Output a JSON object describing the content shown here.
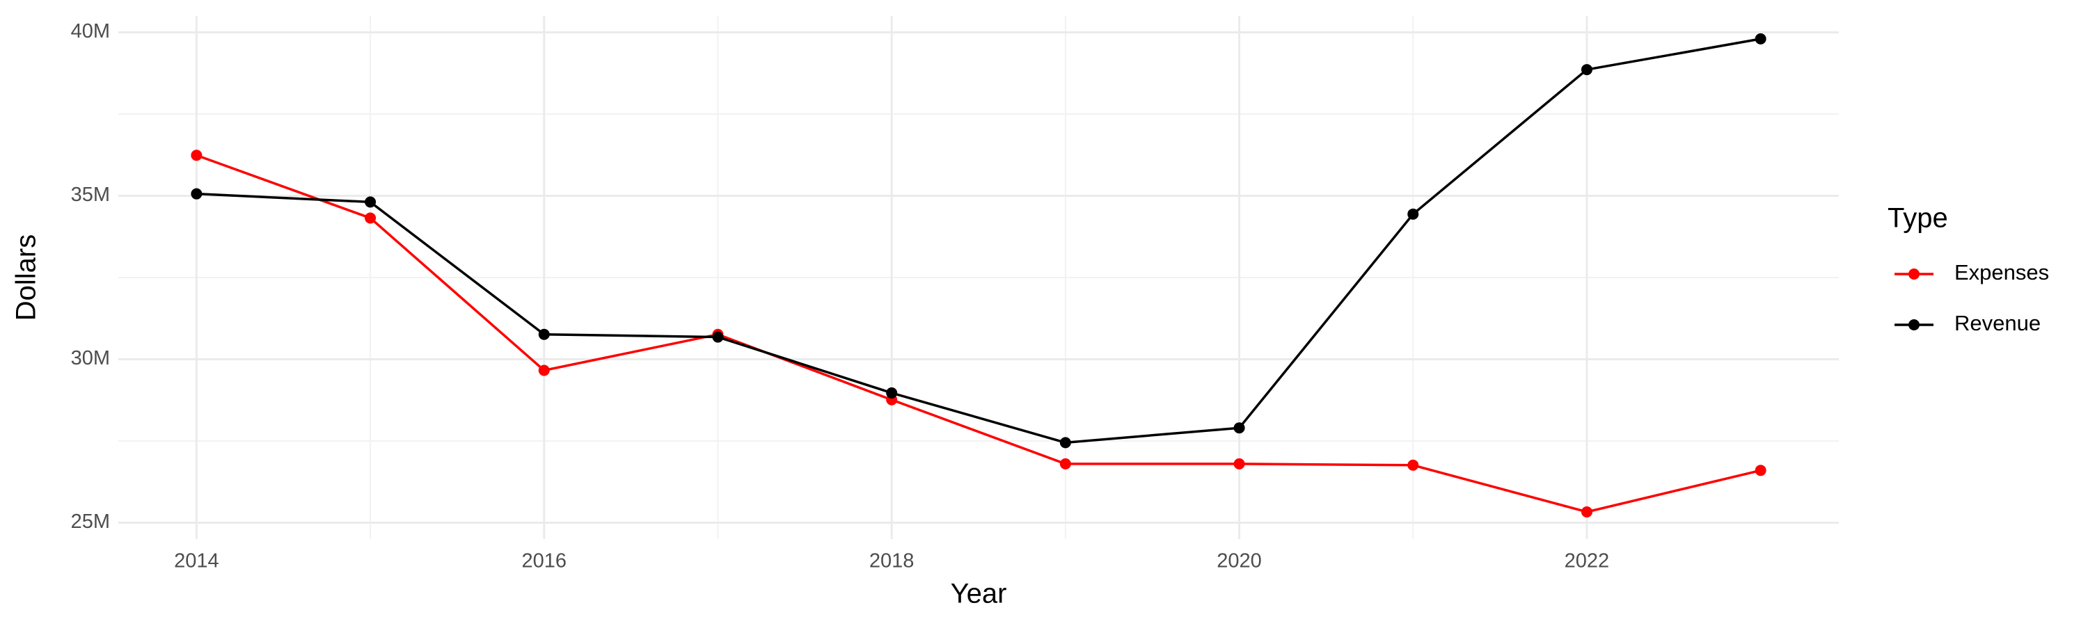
{
  "chart_data": {
    "type": "line",
    "x_label": "Year",
    "y_label": "Dollars",
    "x": [
      2014,
      2015,
      2016,
      2017,
      2018,
      2019,
      2020,
      2021,
      2022,
      2023
    ],
    "series": [
      {
        "name": "Expenses",
        "color": "#ff0000",
        "values": [
          36240000,
          34320000,
          29660000,
          30760000,
          28760000,
          26800000,
          26800000,
          26760000,
          25330000,
          26600000
        ]
      },
      {
        "name": "Revenue",
        "color": "#000000",
        "values": [
          35060000,
          34810000,
          30760000,
          30680000,
          28970000,
          27450000,
          27900000,
          34440000,
          38860000,
          39800000
        ]
      }
    ],
    "xlim": [
      2013.55,
      2023.45
    ],
    "ylim": [
      24500000,
      40500000
    ],
    "xticks": [
      2014,
      2016,
      2018,
      2020,
      2022
    ],
    "yticks": [
      {
        "value": 25000000,
        "label": "25M"
      },
      {
        "value": 30000000,
        "label": "30M"
      },
      {
        "value": 35000000,
        "label": "35M"
      },
      {
        "value": 40000000,
        "label": "40M"
      }
    ],
    "grid": true,
    "minor_grid": true,
    "legend_title": "Type",
    "legend_position": "right"
  }
}
